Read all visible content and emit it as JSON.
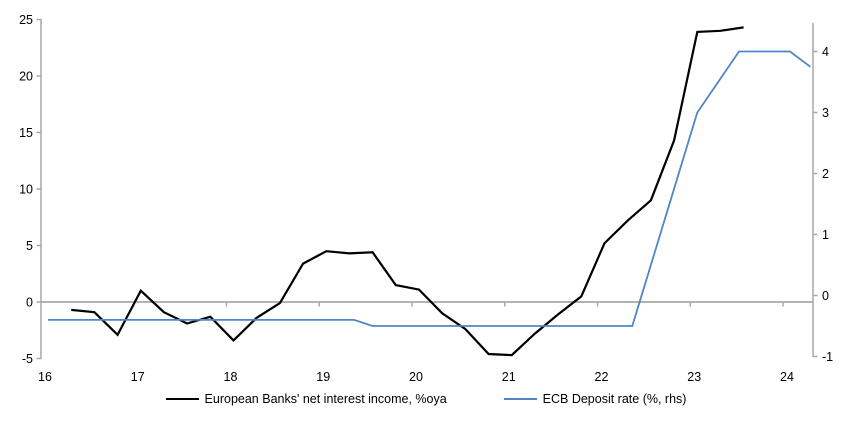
{
  "chart_data": {
    "type": "line",
    "title": "",
    "x_axis": {
      "ticks": [
        16,
        17,
        18,
        19,
        20,
        21,
        22,
        23,
        24
      ],
      "min": 16,
      "max": 24.35
    },
    "y_axis_left": {
      "ticks": [
        25,
        20,
        15,
        10,
        5,
        0,
        -5
      ],
      "min": -5,
      "max": 25
    },
    "y_axis_right": {
      "ticks": [
        4,
        3,
        2,
        1,
        0,
        -1
      ],
      "min": -1,
      "max": 4.4
    },
    "grid": "zero-line-only",
    "legend_position": "bottom-center",
    "series": [
      {
        "name": "European Banks' net interest income, %oya",
        "axis": "left",
        "color": "#000000",
        "x": [
          16.25,
          16.5,
          16.75,
          17.0,
          17.25,
          17.5,
          17.75,
          18.0,
          18.25,
          18.5,
          18.75,
          19.0,
          19.25,
          19.5,
          19.75,
          20.0,
          20.25,
          20.5,
          20.75,
          21.0,
          21.25,
          21.5,
          21.75,
          22.0,
          22.25,
          22.5,
          22.75,
          23.0,
          23.25,
          23.5
        ],
        "values": [
          -0.7,
          -0.9,
          -2.9,
          1.0,
          -0.9,
          -1.9,
          -1.3,
          -3.4,
          -1.4,
          -0.1,
          3.4,
          4.5,
          4.3,
          4.4,
          1.5,
          1.1,
          -1.0,
          -2.4,
          -4.6,
          -4.7,
          -2.8,
          -1.1,
          0.5,
          5.2,
          7.2,
          9.0,
          14.3,
          23.9,
          24.0,
          24.3
        ]
      },
      {
        "name": "ECB Deposit rate (%, rhs)",
        "axis": "right",
        "color": "#4f86c6",
        "x": [
          16.0,
          19.3,
          19.5,
          22.3,
          23.0,
          23.45,
          24.0,
          24.22
        ],
        "values": [
          -0.4,
          -0.4,
          -0.5,
          -0.5,
          3.0,
          4.0,
          4.0,
          3.75
        ]
      }
    ],
    "axis_color": "#a8a8a8",
    "text_color": "#000000"
  }
}
